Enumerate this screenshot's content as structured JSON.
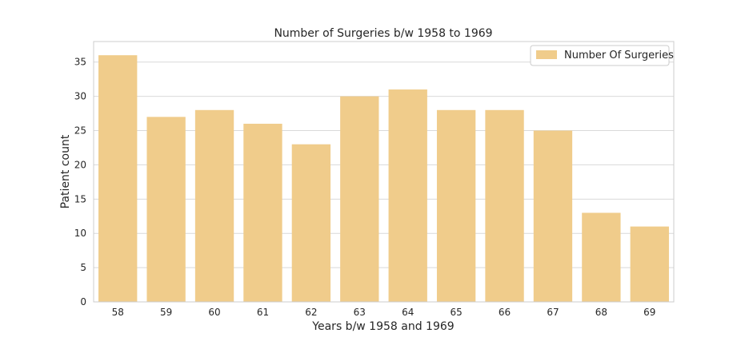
{
  "chart_data": {
    "type": "bar",
    "title": "Number of Surgeries b/w 1958 to 1969",
    "xlabel": "Years b/w 1958 and 1969",
    "ylabel": "Patient count",
    "categories": [
      "58",
      "59",
      "60",
      "61",
      "62",
      "63",
      "64",
      "65",
      "66",
      "67",
      "68",
      "69"
    ],
    "series": [
      {
        "name": "Number Of Surgeries",
        "values": [
          36,
          27,
          28,
          26,
          23,
          30,
          31,
          28,
          28,
          25,
          13,
          11
        ]
      }
    ],
    "ylim": [
      0,
      38
    ],
    "yticks": [
      0,
      5,
      10,
      15,
      20,
      25,
      30,
      35
    ],
    "grid": "horizontal",
    "legend_position": "top-right",
    "colors": {
      "bar": "#f0cc8b",
      "grid": "#d9d9d9",
      "frame": "#cccccc",
      "text": "#262626"
    }
  }
}
